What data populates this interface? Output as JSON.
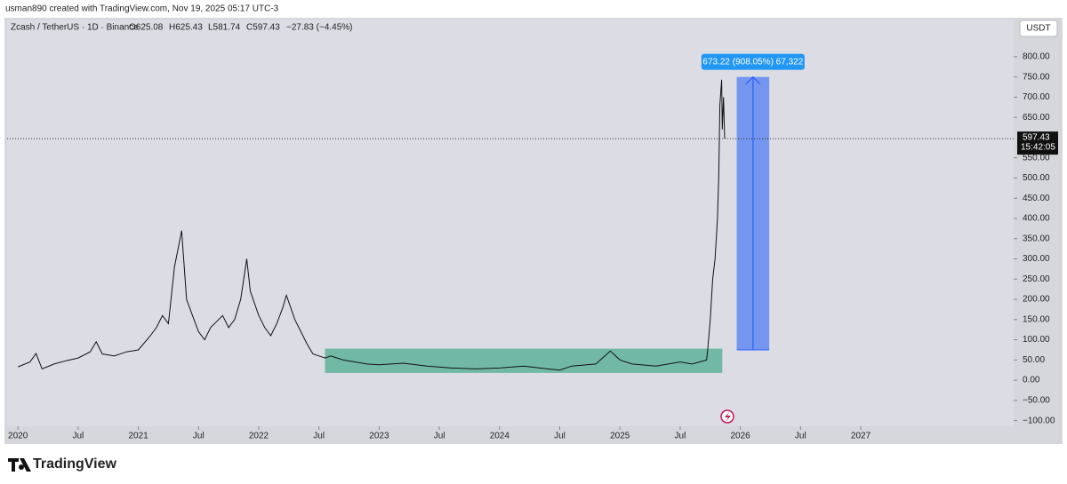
{
  "header": {
    "credit": "usman890 created with TradingView.com, Nov 19, 2025 05:17 UTC-3",
    "legend": [
      "O625.08",
      "H625.43",
      "L581.74",
      "C597.43",
      "−27.83 (−4.45%)"
    ],
    "brand": "TradingView"
  },
  "chart_data": {
    "type": "line",
    "title": "Zcash / TetherUS · 1D · Binance",
    "currency": "USDT",
    "color": "#111111",
    "x": [
      2020.0,
      2020.1,
      2020.15,
      2020.2,
      2020.3,
      2020.4,
      2020.5,
      2020.6,
      2020.65,
      2020.7,
      2020.8,
      2020.9,
      2021.0,
      2021.1,
      2021.15,
      2021.2,
      2021.25,
      2021.3,
      2021.36,
      2021.4,
      2021.45,
      2021.5,
      2021.55,
      2021.6,
      2021.7,
      2021.75,
      2021.8,
      2021.85,
      2021.9,
      2021.93,
      2022.0,
      2022.05,
      2022.1,
      2022.15,
      2022.2,
      2022.23,
      2022.3,
      2022.35,
      2022.4,
      2022.45,
      2022.5,
      2022.55,
      2022.6,
      2022.7,
      2022.8,
      2022.9,
      2023.0,
      2023.2,
      2023.4,
      2023.6,
      2023.8,
      2024.0,
      2024.2,
      2024.4,
      2024.5,
      2024.6,
      2024.8,
      2024.92,
      2025.0,
      2025.1,
      2025.3,
      2025.5,
      2025.6,
      2025.72,
      2025.73,
      2025.75,
      2025.77,
      2025.79,
      2025.81,
      2025.82,
      2025.83,
      2025.845,
      2025.85,
      2025.86,
      2025.87
    ],
    "values": [
      33,
      45,
      66,
      28,
      40,
      48,
      55,
      70,
      95,
      65,
      60,
      70,
      75,
      110,
      130,
      160,
      140,
      280,
      370,
      200,
      160,
      120,
      100,
      130,
      160,
      130,
      150,
      200,
      300,
      220,
      160,
      130,
      110,
      140,
      180,
      210,
      150,
      120,
      90,
      65,
      60,
      55,
      60,
      50,
      45,
      40,
      38,
      42,
      35,
      30,
      28,
      30,
      35,
      28,
      25,
      35,
      40,
      72,
      50,
      40,
      35,
      45,
      40,
      50,
      80,
      150,
      250,
      300,
      400,
      500,
      680,
      743,
      620,
      700,
      597.43
    ],
    "xlim": [
      2019.91,
      2028.27
    ],
    "ylim": [
      -114,
      892
    ],
    "xticks": [
      2020,
      {
        "value": 2020.5,
        "label": "Jul"
      },
      2021,
      {
        "value": 2021.5,
        "label": "Jul"
      },
      2022,
      {
        "value": 2022.5,
        "label": "Jul"
      },
      2023,
      {
        "value": 2023.5,
        "label": "Jul"
      },
      2024,
      {
        "value": 2024.5,
        "label": "Jul"
      },
      2025,
      {
        "value": 2025.5,
        "label": "Jul"
      },
      2026,
      {
        "value": 2026.5,
        "label": "Jul"
      },
      2027
    ],
    "yticks": [
      {
        "value": 800,
        "label": "800.00"
      },
      {
        "value": 750,
        "label": "750.00"
      },
      {
        "value": 700,
        "label": "700.00"
      },
      {
        "value": 650,
        "label": "650.00"
      },
      {
        "value": 550,
        "label": "550.00"
      },
      {
        "value": 500,
        "label": "500.00"
      },
      {
        "value": 450,
        "label": "450.00"
      },
      {
        "value": 400,
        "label": "400.00"
      },
      {
        "value": 350,
        "label": "350.00"
      },
      {
        "value": 300,
        "label": "300.00"
      },
      {
        "value": 250,
        "label": "250.00"
      },
      {
        "value": 200,
        "label": "200.00"
      },
      {
        "value": 150,
        "label": "150.00"
      },
      {
        "value": 100,
        "label": "100.00"
      },
      {
        "value": 50,
        "label": "50.00"
      },
      {
        "value": 0,
        "label": "0.00"
      },
      {
        "value": -50,
        "label": "−50.00"
      },
      {
        "value": -100,
        "label": "−100.00"
      }
    ],
    "last_price": {
      "value": 597.43,
      "label": "597.43"
    },
    "countdown": "15:42:05",
    "accumulation": {
      "x": [
        2022.55,
        2025.85
      ],
      "y": [
        18,
        78
      ],
      "color": "#5fb39a"
    },
    "measure": {
      "x": [
        2025.97,
        2026.24
      ],
      "y": [
        75,
        750
      ],
      "color": "#5b84f0",
      "label": "673.22 (908.05%) 67,322"
    }
  }
}
